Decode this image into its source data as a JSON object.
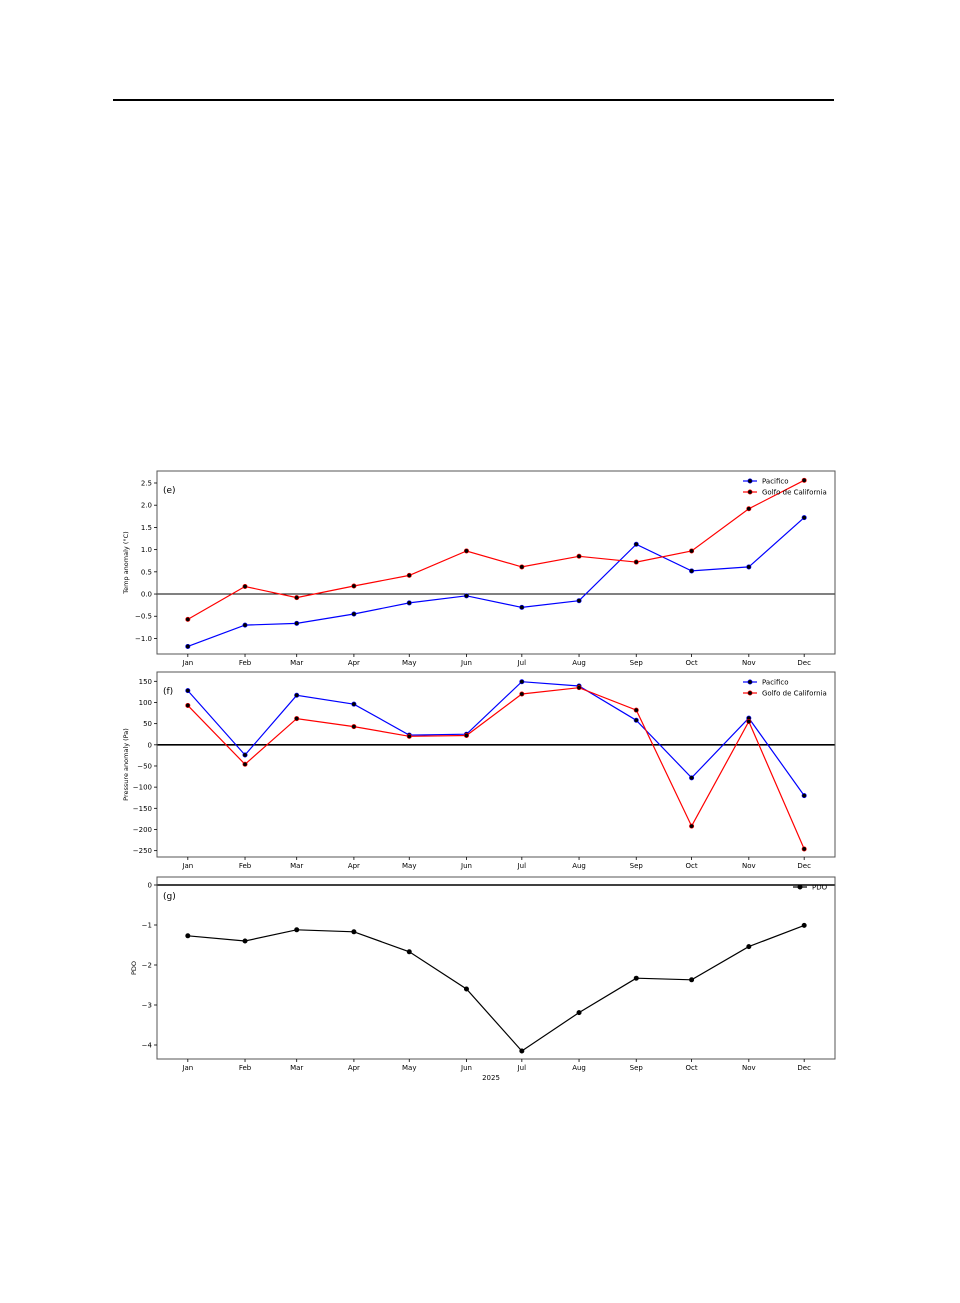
{
  "chart_data": [
    {
      "type": "line",
      "panel_label": "(e)",
      "ylabel": "Temp anomaly (°C)",
      "xlabel": "",
      "x": [
        "2025-01-01",
        "2025-02-01",
        "2025-03-01",
        "2025-04-01",
        "2025-05-01",
        "2025-06-01",
        "2025-07-01",
        "2025-08-01",
        "2025-09-01",
        "2025-10-01",
        "2025-11-01",
        "2025-12-01"
      ],
      "xtick_labels": [
        "Jan",
        "Feb",
        "Mar",
        "Apr",
        "May",
        "Jun",
        "Jul",
        "Aug",
        "Sep",
        "Oct",
        "Nov",
        "Dec"
      ],
      "yticks": [
        -1.0,
        -0.5,
        0.0,
        0.5,
        1.0,
        1.5,
        2.0,
        2.5
      ],
      "ytick_labels": [
        "−1.0",
        "−0.5",
        "0.0",
        "0.5",
        "1.0",
        "1.5",
        "2.0",
        "2.5"
      ],
      "ylim": [
        -1.35,
        2.77
      ],
      "reference_line": 0,
      "legend": "top-right",
      "grid": false,
      "series": [
        {
          "name": "Pacifico",
          "color": "#0000ff",
          "values": [
            -1.18,
            -0.7,
            -0.66,
            -0.45,
            -0.2,
            -0.04,
            -0.3,
            -0.15,
            1.12,
            0.52,
            0.61,
            1.72
          ]
        },
        {
          "name": "Golfo de California",
          "color": "#ff0000",
          "values": [
            -0.57,
            0.17,
            -0.08,
            0.18,
            0.42,
            0.97,
            0.61,
            0.85,
            0.72,
            0.97,
            1.92,
            2.56
          ]
        }
      ]
    },
    {
      "type": "line",
      "panel_label": "(f)",
      "ylabel": "Pressure anomaly (Pa)",
      "xlabel": "",
      "x": [
        "2025-01-01",
        "2025-02-01",
        "2025-03-01",
        "2025-04-01",
        "2025-05-01",
        "2025-06-01",
        "2025-07-01",
        "2025-08-01",
        "2025-09-01",
        "2025-10-01",
        "2025-11-01",
        "2025-12-01"
      ],
      "xtick_labels": [
        "Jan",
        "Feb",
        "Mar",
        "Apr",
        "May",
        "Jun",
        "Jul",
        "Aug",
        "Sep",
        "Oct",
        "Nov",
        "Dec"
      ],
      "yticks": [
        -250,
        -200,
        -150,
        -100,
        -50,
        0,
        50,
        100,
        150
      ],
      "ytick_labels": [
        "−250",
        "−200",
        "−150",
        "−100",
        "−50",
        "0",
        "50",
        "100",
        "150"
      ],
      "ylim": [
        -265,
        172
      ],
      "reference_line": 0,
      "legend": "top-right",
      "grid": false,
      "series": [
        {
          "name": "Pacifico",
          "color": "#0000ff",
          "values": [
            128,
            -24,
            117,
            96,
            23,
            25,
            149,
            139,
            58,
            -78,
            63,
            -120
          ]
        },
        {
          "name": "Golfo de California",
          "color": "#ff0000",
          "values": [
            93,
            -46,
            62,
            43,
            20,
            22,
            120,
            135,
            82,
            -192,
            55,
            -246
          ]
        }
      ]
    },
    {
      "type": "line",
      "panel_label": "(g)",
      "ylabel": "PDO",
      "xlabel": "2025",
      "x": [
        "2025-01-01",
        "2025-02-01",
        "2025-03-01",
        "2025-04-01",
        "2025-05-01",
        "2025-06-01",
        "2025-07-01",
        "2025-08-01",
        "2025-09-01",
        "2025-10-01",
        "2025-11-01",
        "2025-12-01"
      ],
      "xtick_labels": [
        "Jan",
        "Feb",
        "Mar",
        "Apr",
        "May",
        "Jun",
        "Jul",
        "Aug",
        "Sep",
        "Oct",
        "Nov",
        "Dec"
      ],
      "yticks": [
        -4,
        -3,
        -2,
        -1,
        0
      ],
      "ytick_labels": [
        "−4",
        "−3",
        "−2",
        "−1",
        "0"
      ],
      "ylim": [
        -4.35,
        0.2
      ],
      "reference_line": 0,
      "legend": "top-right",
      "grid": false,
      "series": [
        {
          "name": "PDO",
          "color": "#000000",
          "values": [
            -1.27,
            -1.4,
            -1.12,
            -1.17,
            -1.67,
            -2.6,
            -4.15,
            -3.19,
            -2.33,
            -2.37,
            -1.54,
            -1.01
          ]
        }
      ]
    }
  ]
}
